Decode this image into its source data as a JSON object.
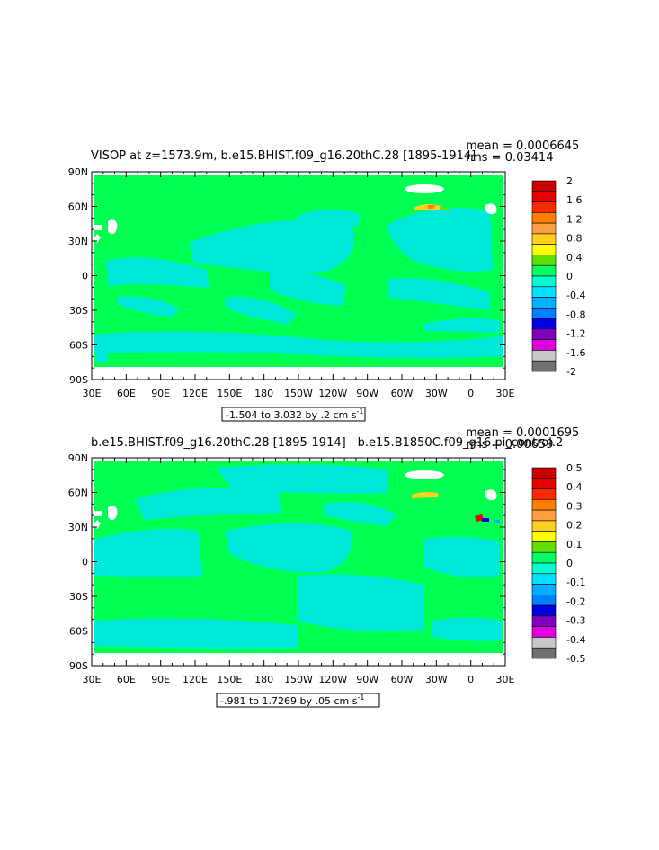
{
  "panels": [
    {
      "title": "VISOP at z=1573.9m, b.e15.BHIST.f09_g16.20thC.28  [1895-1914]",
      "mean_label": "mean = 0.0006645",
      "rms_label": "rms = 0.03414",
      "range_label": "-1.504 to 3.032 by .2 cm s",
      "range_sup": "-1",
      "colorbar_labels": [
        "2",
        "1.6",
        "1.2",
        "0.8",
        "0.4",
        "0",
        "-0.4",
        "-0.8",
        "-1.2",
        "-1.6",
        "-2"
      ]
    },
    {
      "title": "b.e15.BHIST.f09_g16.20thC.28  [1895-1914]  -  b.e15.B1850C.f09_g16.pi_control.2",
      "mean_label": "mean = 0.0001695",
      "rms_label": "rms = 0.00659",
      "range_label": "-.981 to 1.7269 by .05 cm s",
      "range_sup": "-1",
      "colorbar_labels": [
        "0.5",
        "0.4",
        "0.3",
        "0.2",
        "0.1",
        "0",
        "-0.1",
        "-0.2",
        "-0.3",
        "-0.4",
        "-0.5"
      ]
    }
  ],
  "colorbar_colors": [
    "#c80000",
    "#e60000",
    "#ff2800",
    "#ff7f00",
    "#ffa040",
    "#ffd020",
    "#ffff00",
    "#60e000",
    "#00ff60",
    "#00ffd0",
    "#00e0ff",
    "#00b0ff",
    "#0080ff",
    "#0000e0",
    "#8000c0",
    "#e000e0",
    "#c8c8c8",
    "#707070"
  ],
  "chart_data": [
    {
      "type": "heatmap",
      "title": "VISOP at z=1573.9m, b.e15.BHIST.f09_g16.20thC.28  [1895-1914]",
      "x_tick_labels": [
        "30E",
        "60E",
        "90E",
        "120E",
        "150E",
        "180",
        "150W",
        "120W",
        "90W",
        "60W",
        "30W",
        "0",
        "30E"
      ],
      "y_tick_labels": [
        "90N",
        "60N",
        "30N",
        "0",
        "30S",
        "60S",
        "90S"
      ],
      "contour_levels": [
        -2,
        -1.8,
        -1.6,
        -1.4,
        -1.2,
        -1,
        -0.8,
        -0.6,
        -0.4,
        -0.2,
        0,
        0.2,
        0.4,
        0.6,
        0.8,
        1,
        1.2,
        1.4,
        1.6,
        1.8,
        2
      ],
      "data_min": -1.504,
      "data_max": 3.032,
      "interval": 0.2,
      "units": "cm s-1",
      "mean": 0.0006645,
      "rms": 0.03414,
      "dominant_field": "0 to 0.2 (green) with bands of -0.2 to 0 (cyan)"
    },
    {
      "type": "heatmap",
      "title": "b.e15.BHIST.f09_g16.20thC.28  [1895-1914]  -  b.e15.B1850C.f09_g16.pi_control.2",
      "x_tick_labels": [
        "30E",
        "60E",
        "90E",
        "120E",
        "150E",
        "180",
        "150W",
        "120W",
        "90W",
        "60W",
        "30W",
        "0",
        "30E"
      ],
      "y_tick_labels": [
        "90N",
        "60N",
        "30N",
        "0",
        "30S",
        "60S",
        "90S"
      ],
      "contour_levels": [
        -0.5,
        -0.45,
        -0.4,
        -0.35,
        -0.3,
        -0.25,
        -0.2,
        -0.15,
        -0.1,
        -0.05,
        0,
        0.05,
        0.1,
        0.15,
        0.2,
        0.25,
        0.3,
        0.35,
        0.4,
        0.45,
        0.5
      ],
      "data_min": -0.981,
      "data_max": 1.7269,
      "interval": 0.05,
      "units": "cm s-1",
      "mean": 0.0001695,
      "rms": 0.00659,
      "dominant_field": "0 to 0.05 (green) with bands of -0.05 to 0 (cyan)"
    }
  ]
}
